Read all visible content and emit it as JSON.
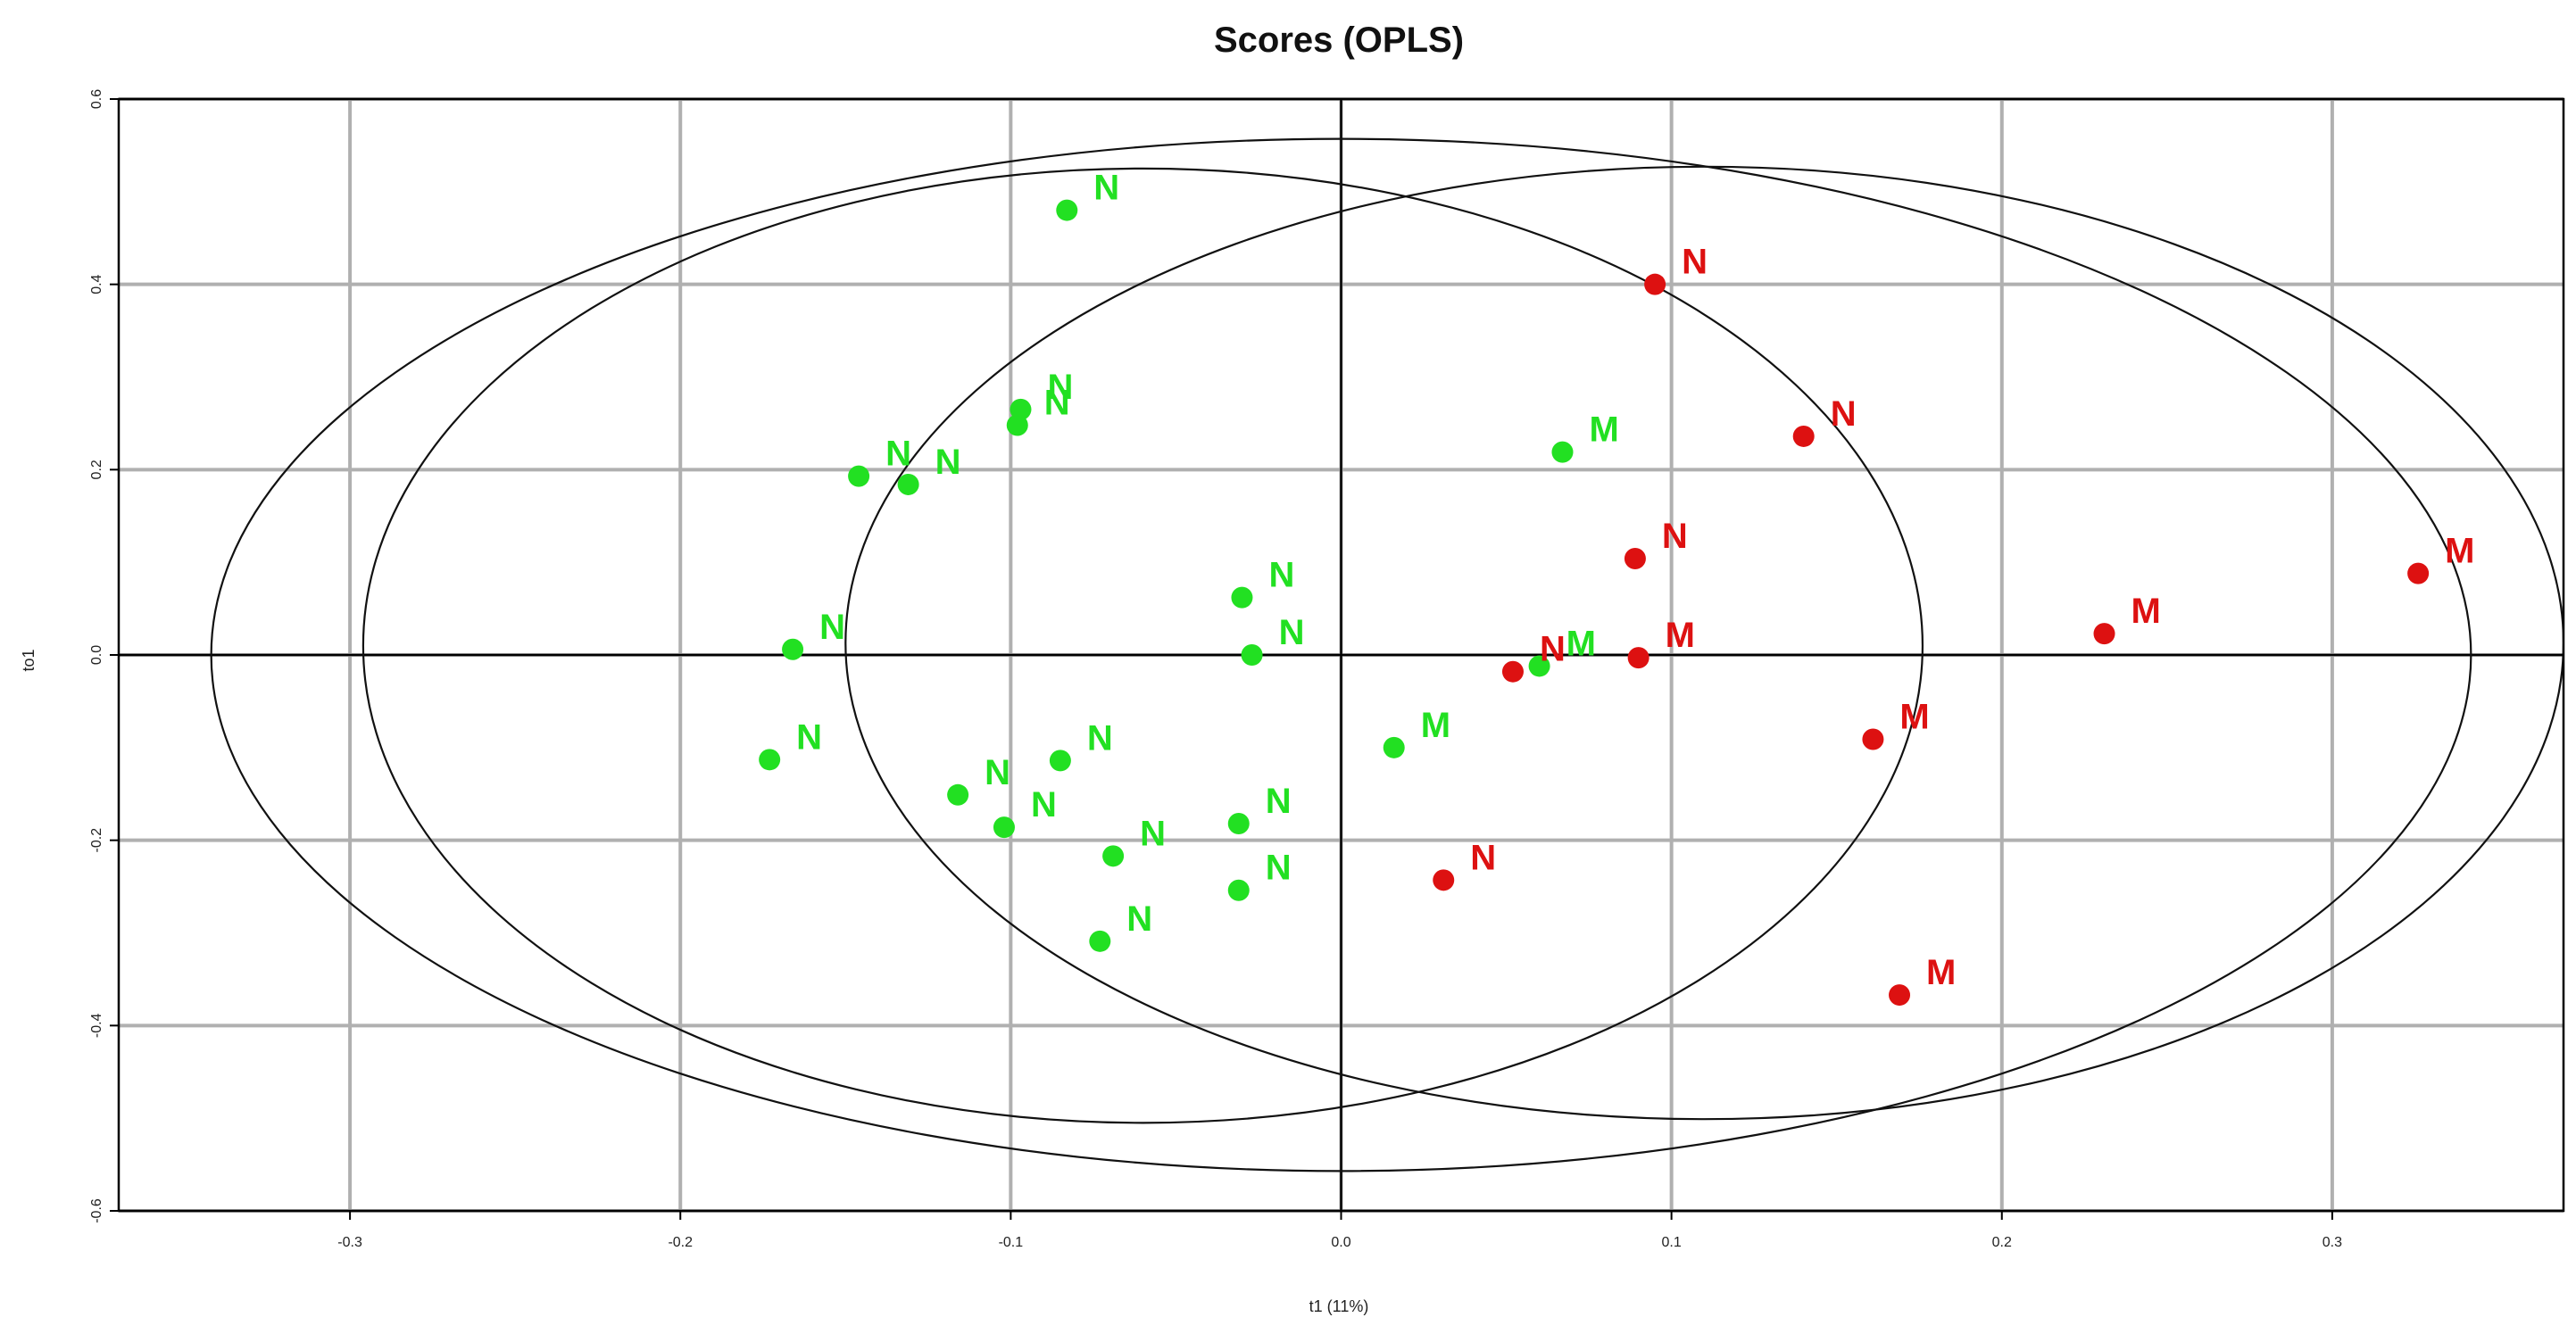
{
  "chart_data": {
    "type": "scatter",
    "title": "Scores (OPLS)",
    "xlabel": "t1 (11%)",
    "ylabel": "to1",
    "xlim": [
      -0.37,
      0.37
    ],
    "ylim": [
      -0.6,
      0.6
    ],
    "x_ticks": [
      -0.3,
      -0.2,
      -0.1,
      0.0,
      0.1,
      0.2,
      0.3
    ],
    "x_tick_labels": [
      "-0.3",
      "-0.2",
      "-0.1",
      "0.0",
      "0.1",
      "0.2",
      "0.3"
    ],
    "y_ticks": [
      -0.6,
      -0.4,
      -0.2,
      0.0,
      0.2,
      0.4,
      0.6
    ],
    "y_tick_labels": [
      "-0.6",
      "-0.4",
      "-0.2",
      "0.0",
      "0.2",
      "0.4",
      "0.6"
    ],
    "grid": true,
    "colors": {
      "green_group": "#22e022",
      "red_group": "#dd1111",
      "ellipse": "#111111",
      "grid": "#b0b0b0"
    },
    "series": [
      {
        "color": "#22e022",
        "points": [
          {
            "x": -0.083,
            "y": 0.48,
            "label": "N"
          },
          {
            "x": -0.097,
            "y": 0.265,
            "label": "N"
          },
          {
            "x": -0.098,
            "y": 0.248,
            "label": "N"
          },
          {
            "x": -0.146,
            "y": 0.193,
            "label": "N"
          },
          {
            "x": -0.131,
            "y": 0.184,
            "label": "N"
          },
          {
            "x": 0.067,
            "y": 0.219,
            "label": "M"
          },
          {
            "x": -0.03,
            "y": 0.062,
            "label": "N"
          },
          {
            "x": -0.027,
            "y": 0.0,
            "label": "N"
          },
          {
            "x": -0.166,
            "y": 0.006,
            "label": "N"
          },
          {
            "x": 0.06,
            "y": -0.012,
            "label": "M"
          },
          {
            "x": 0.016,
            "y": -0.1,
            "label": "M"
          },
          {
            "x": -0.173,
            "y": -0.113,
            "label": "N"
          },
          {
            "x": -0.085,
            "y": -0.114,
            "label": "N"
          },
          {
            "x": -0.116,
            "y": -0.151,
            "label": "N"
          },
          {
            "x": -0.102,
            "y": -0.186,
            "label": "N"
          },
          {
            "x": -0.031,
            "y": -0.182,
            "label": "N"
          },
          {
            "x": -0.069,
            "y": -0.217,
            "label": "N"
          },
          {
            "x": -0.031,
            "y": -0.254,
            "label": "N"
          },
          {
            "x": -0.073,
            "y": -0.309,
            "label": "N"
          }
        ]
      },
      {
        "color": "#dd1111",
        "points": [
          {
            "x": 0.095,
            "y": 0.4,
            "label": "N"
          },
          {
            "x": 0.14,
            "y": 0.236,
            "label": "N"
          },
          {
            "x": 0.089,
            "y": 0.104,
            "label": "N"
          },
          {
            "x": 0.326,
            "y": 0.088,
            "label": "M"
          },
          {
            "x": 0.231,
            "y": 0.023,
            "label": "M"
          },
          {
            "x": 0.09,
            "y": -0.003,
            "label": "M"
          },
          {
            "x": 0.052,
            "y": -0.018,
            "label": "N"
          },
          {
            "x": 0.161,
            "y": -0.091,
            "label": "M"
          },
          {
            "x": 0.031,
            "y": -0.243,
            "label": "N"
          },
          {
            "x": 0.169,
            "y": -0.367,
            "label": "M"
          }
        ]
      }
    ],
    "ellipses": [
      {
        "cx": 0.0,
        "cy": 0.0,
        "rx": 0.342,
        "ry": 0.557
      },
      {
        "cx": -0.06,
        "cy": 0.01,
        "rx": 0.236,
        "ry": 0.515
      },
      {
        "cx": 0.11,
        "cy": 0.013,
        "rx": 0.26,
        "ry": 0.514
      }
    ]
  }
}
